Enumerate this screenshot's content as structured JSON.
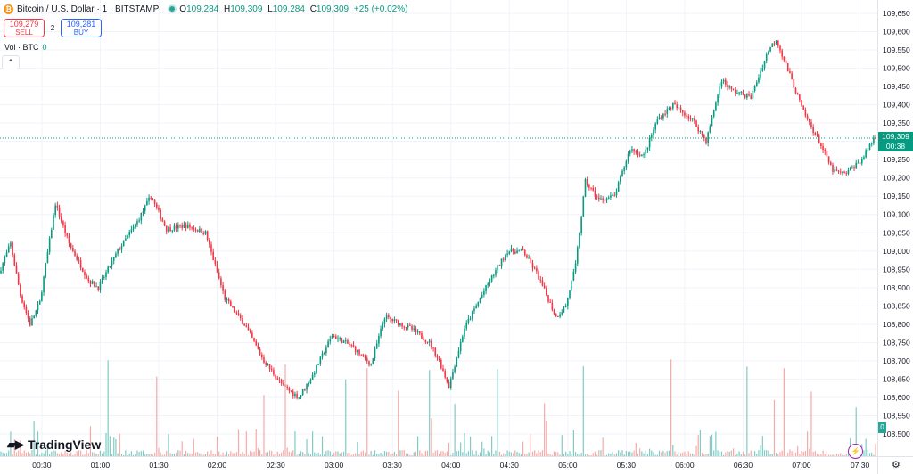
{
  "header": {
    "symbol_title": "Bitcoin / U.S. Dollar · 1 · BITSTAMP",
    "ohlc": [
      {
        "label": "O",
        "value": "109,284"
      },
      {
        "label": "H",
        "value": "109,309"
      },
      {
        "label": "L",
        "value": "109,284"
      },
      {
        "label": "C",
        "value": "109,309"
      }
    ],
    "change": "+25 (+0.02%)"
  },
  "trade": {
    "sell_price": "109,279",
    "sell_label": "SELL",
    "spread": "2",
    "buy_price": "109,281",
    "buy_label": "BUY"
  },
  "volume_label": "Vol · BTC",
  "volume_value": "0",
  "collapse_glyph": "⌃",
  "logo_text": "TradingView",
  "current_price": {
    "value": "109,309",
    "countdown": "00:38"
  },
  "volume_tag": "0",
  "colors": {
    "up": "#089981",
    "down": "#f23645",
    "vol_up": "#80cbc4",
    "vol_down": "#f7a9a7",
    "grid": "#f0f3fa"
  },
  "icons": {
    "symbol": "bitcoin-icon",
    "settings": "gear-icon",
    "alert": "flash-icon"
  },
  "chart_data": {
    "type": "candlestick",
    "interval_minutes": 1,
    "y_axis": {
      "min": 108500,
      "max": 109650,
      "step": 50,
      "tick_labels": [
        "108,500",
        "108,550",
        "108,600",
        "108,650",
        "108,700",
        "108,750",
        "108,800",
        "108,850",
        "108,900",
        "108,950",
        "109,000",
        "109,050",
        "109,100",
        "109,150",
        "109,200",
        "109,250",
        "109,300",
        "109,350",
        "109,400",
        "109,450",
        "109,500",
        "109,550",
        "109,600",
        "109,650"
      ]
    },
    "x_axis": {
      "tick_labels": [
        "00:30",
        "01:00",
        "01:30",
        "02:00",
        "02:30",
        "03:00",
        "03:30",
        "04:00",
        "04:30",
        "05:00",
        "05:30",
        "06:00",
        "06:30",
        "07:00",
        "07:30"
      ],
      "start_time": "00:09",
      "end_time": "07:38"
    },
    "anchors": [
      {
        "time": "00:09",
        "price": 108940
      },
      {
        "time": "00:15",
        "price": 109020
      },
      {
        "time": "00:20",
        "price": 108880
      },
      {
        "time": "00:25",
        "price": 108800
      },
      {
        "time": "00:30",
        "price": 108860
      },
      {
        "time": "00:38",
        "price": 109130
      },
      {
        "time": "00:45",
        "price": 109020
      },
      {
        "time": "00:55",
        "price": 108920
      },
      {
        "time": "01:00",
        "price": 108900
      },
      {
        "time": "01:10",
        "price": 109000
      },
      {
        "time": "01:20",
        "price": 109080
      },
      {
        "time": "01:27",
        "price": 109150
      },
      {
        "time": "01:35",
        "price": 109060
      },
      {
        "time": "01:45",
        "price": 109070
      },
      {
        "time": "01:55",
        "price": 109050
      },
      {
        "time": "02:05",
        "price": 108870
      },
      {
        "time": "02:15",
        "price": 108800
      },
      {
        "time": "02:25",
        "price": 108700
      },
      {
        "time": "02:35",
        "price": 108630
      },
      {
        "time": "02:43",
        "price": 108600
      },
      {
        "time": "02:50",
        "price": 108660
      },
      {
        "time": "03:00",
        "price": 108770
      },
      {
        "time": "03:10",
        "price": 108740
      },
      {
        "time": "03:20",
        "price": 108690
      },
      {
        "time": "03:27",
        "price": 108820
      },
      {
        "time": "03:40",
        "price": 108790
      },
      {
        "time": "03:50",
        "price": 108750
      },
      {
        "time": "03:55",
        "price": 108700
      },
      {
        "time": "04:00",
        "price": 108630
      },
      {
        "time": "04:08",
        "price": 108790
      },
      {
        "time": "04:20",
        "price": 108910
      },
      {
        "time": "04:30",
        "price": 109000
      },
      {
        "time": "04:38",
        "price": 109000
      },
      {
        "time": "04:45",
        "price": 108940
      },
      {
        "time": "04:55",
        "price": 108820
      },
      {
        "time": "05:00",
        "price": 108850
      },
      {
        "time": "05:05",
        "price": 108960
      },
      {
        "time": "05:10",
        "price": 109190
      },
      {
        "time": "05:17",
        "price": 109140
      },
      {
        "time": "05:25",
        "price": 109150
      },
      {
        "time": "05:33",
        "price": 109280
      },
      {
        "time": "05:40",
        "price": 109260
      },
      {
        "time": "05:47",
        "price": 109360
      },
      {
        "time": "05:55",
        "price": 109400
      },
      {
        "time": "06:05",
        "price": 109360
      },
      {
        "time": "06:12",
        "price": 109300
      },
      {
        "time": "06:20",
        "price": 109470
      },
      {
        "time": "06:25",
        "price": 109440
      },
      {
        "time": "06:35",
        "price": 109420
      },
      {
        "time": "06:44",
        "price": 109550
      },
      {
        "time": "06:48",
        "price": 109580
      },
      {
        "time": "06:55",
        "price": 109480
      },
      {
        "time": "07:02",
        "price": 109380
      },
      {
        "time": "07:10",
        "price": 109300
      },
      {
        "time": "07:17",
        "price": 109220
      },
      {
        "time": "07:23",
        "price": 109210
      },
      {
        "time": "07:32",
        "price": 109250
      },
      {
        "time": "07:38",
        "price": 109309
      }
    ],
    "last_price": 109309
  }
}
